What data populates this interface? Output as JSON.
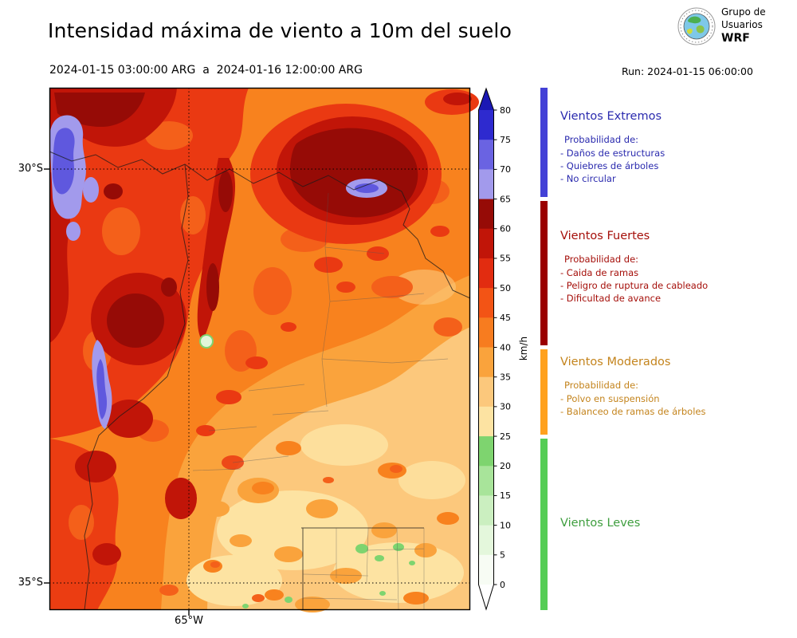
{
  "header": {
    "title": "Intensidad máxima de viento a 10m del suelo",
    "period": "2024-01-15 03:00:00 ARG  a  2024-01-16 12:00:00 ARG",
    "run_label": "Run: 2024-01-15 06:00:00",
    "logo": {
      "org_line1": "Grupo de",
      "org_line2": "Usuarios",
      "org_line3": "WRF"
    }
  },
  "map": {
    "lat_labels": [
      "30°S",
      "35°S"
    ],
    "lon_label": "65°W"
  },
  "colorbar": {
    "unit": "km/h",
    "ticks_top_to_bottom": [
      "80",
      "75",
      "70",
      "65",
      "60",
      "55",
      "50",
      "45",
      "40",
      "35",
      "30",
      "25",
      "20",
      "15",
      "10",
      "5",
      "0"
    ],
    "colors_top_to_bottom": [
      "#2E2ACF",
      "#6A63E2",
      "#A29AEC",
      "#960B06",
      "#C11508",
      "#E22C10",
      "#F35415",
      "#F77C1F",
      "#FAA33C",
      "#FCC87C",
      "#FDE3A2",
      "#7ED46F",
      "#A8E49A",
      "#CBEFC0",
      "#E4F7DC",
      "#F7FCF4"
    ],
    "arrow_top_color": "#1B18B4",
    "arrow_bottom_color": "#FFFFFF"
  },
  "legend": {
    "sections": [
      {
        "title": "Vientos Extremos",
        "color": "#2A2AAE",
        "strip_color": "#4341D6",
        "prob_label": "Probabilidad de:",
        "items": [
          "- Daños de estructuras",
          "- Quiebres de árboles",
          "- No circular"
        ]
      },
      {
        "title": "Vientos Fuertes",
        "color": "#A50F0A",
        "strip_color": "#9B0000",
        "prob_label": "Probabilidad de:",
        "items": [
          "- Caida de ramas",
          "- Peligro de ruptura de cableado",
          "- Dificultad de avance"
        ]
      },
      {
        "title": "Vientos Moderados",
        "color": "#C4841D",
        "strip_color": "#FFA11E",
        "prob_label": "Probabilidad de:",
        "items": [
          "- Polvo en suspensión",
          "- Balanceo de ramas de árboles"
        ]
      },
      {
        "title": "Vientos Leves",
        "color": "#3E9E3E",
        "strip_color": "#55CD55",
        "prob_label": "",
        "items": []
      }
    ]
  },
  "palette": {
    "m-base": "#F8821E",
    "m-o45": "#F4601A",
    "m-red": "#EA3912",
    "m-dred": "#C11508",
    "m-maroon": "#960B06",
    "m-lo": "#FAA33C",
    "m-tan": "#FCC87C",
    "m-cream": "#FDE3A2",
    "m-purple": "#A29AEC",
    "m-blue": "#5F58DE",
    "m-green": "#7ED46F",
    "m-lgreen": "#E2F6DA"
  }
}
